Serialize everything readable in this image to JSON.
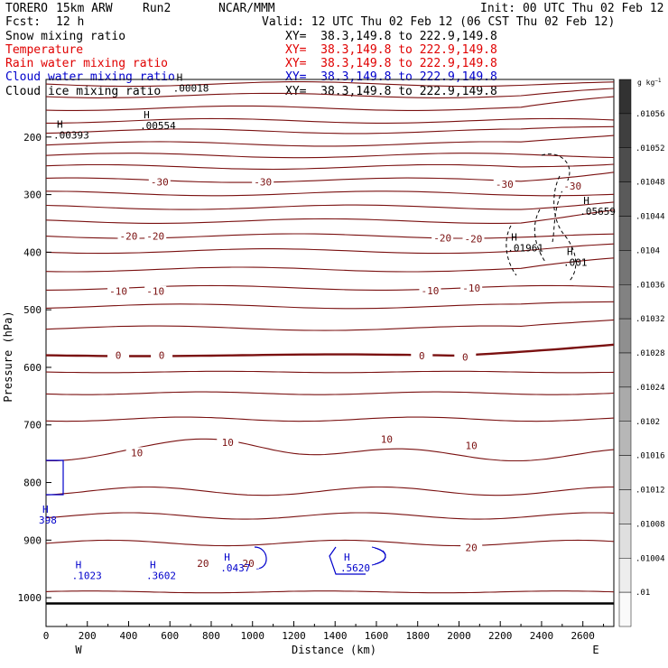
{
  "header": {
    "model": "TORERO",
    "resolution": "15km ARW",
    "run": "Run2",
    "org": "NCAR/MMM",
    "init": "Init: 00 UTC Thu 02 Feb 12",
    "fcst_label": "Fcst:",
    "fcst_value": "12 h",
    "valid": "Valid: 12 UTC Thu 02 Feb 12 (06 CST Thu 02 Feb 12)"
  },
  "fields": [
    {
      "name": "Snow mixing ratio",
      "xy": "",
      "color": "#000000"
    },
    {
      "name": "Temperature",
      "xy": "XY=  38.3,149.8 to 222.9,149.8",
      "color": "#e00000"
    },
    {
      "name": "Rain water mixing ratio",
      "xy": "XY=  38.3,149.8 to 222.9,149.8",
      "color": "#e00000"
    },
    {
      "name": "Cloud water mixing ratio",
      "xy": "XY=  38.3,149.8 to 222.9,149.8",
      "color": "#0000cc"
    },
    {
      "name": "Cloud ice mixing ratio",
      "xy": "XY=  38.3,149.8 to 222.9,149.8",
      "color": "#000000"
    }
  ],
  "snow_xy": "XY=  38.3,149.8 to 222.9,149.8",
  "chart_data": {
    "type": "contour",
    "xlabel": "Distance (km)",
    "ylabel": "Pressure (hPa)",
    "xlim": [
      0,
      2750
    ],
    "ylim": [
      1050,
      100
    ],
    "x_ticks": [
      0,
      200,
      400,
      600,
      800,
      1000,
      1200,
      1400,
      1600,
      1800,
      2000,
      2200,
      2400,
      2600
    ],
    "y_ticks": [
      200,
      300,
      400,
      500,
      600,
      700,
      800,
      900,
      1000
    ],
    "x_end_labels": {
      "left": "W",
      "right": "E"
    },
    "colorbar": {
      "unit": "g kg",
      "ticks": [
        ".01056",
        ".01052",
        ".01048",
        ".01044",
        ".0104",
        ".01036",
        ".01032",
        ".01028",
        ".01024",
        ".0102",
        ".01016",
        ".01012",
        ".01008",
        ".01004",
        ".01"
      ]
    },
    "temperature_labels": [
      {
        "x": 1050,
        "p": 278,
        "text": "-30"
      },
      {
        "x": 550,
        "p": 278,
        "text": "-30"
      },
      {
        "x": 2220,
        "p": 282,
        "text": "-30"
      },
      {
        "x": 2550,
        "p": 285,
        "text": "-30"
      },
      {
        "x": 400,
        "p": 372,
        "text": "-20"
      },
      {
        "x": 530,
        "p": 372,
        "text": "-20"
      },
      {
        "x": 1920,
        "p": 375,
        "text": "-20"
      },
      {
        "x": 2070,
        "p": 377,
        "text": "-20"
      },
      {
        "x": 350,
        "p": 468,
        "text": "-10"
      },
      {
        "x": 530,
        "p": 468,
        "text": "-10"
      },
      {
        "x": 1860,
        "p": 467,
        "text": "-10"
      },
      {
        "x": 2060,
        "p": 462,
        "text": "-10"
      },
      {
        "x": 350,
        "p": 579,
        "text": "0"
      },
      {
        "x": 560,
        "p": 579,
        "text": "0"
      },
      {
        "x": 1820,
        "p": 580,
        "text": "0"
      },
      {
        "x": 2030,
        "p": 582,
        "text": "0"
      },
      {
        "x": 440,
        "p": 748,
        "text": "10"
      },
      {
        "x": 880,
        "p": 730,
        "text": "10"
      },
      {
        "x": 1650,
        "p": 725,
        "text": "10"
      },
      {
        "x": 2060,
        "p": 736,
        "text": "10"
      },
      {
        "x": 760,
        "p": 940,
        "text": "20"
      },
      {
        "x": 980,
        "p": 940,
        "text": "20"
      },
      {
        "x": 2060,
        "p": 913,
        "text": "20"
      }
    ],
    "maxima": [
      {
        "x": 70,
        "p": 193,
        "value": ".00393",
        "color": "#000000"
      },
      {
        "x": 490,
        "p": 177,
        "value": ".00554",
        "color": "#000000"
      },
      {
        "x": 650,
        "p": 112,
        "value": ".00018",
        "color": "#000000"
      },
      {
        "x": 2270,
        "p": 389,
        "value": ".01961",
        "color": "#000000"
      },
      {
        "x": 2540,
        "p": 414,
        "value": ".001",
        "color": "#000000"
      },
      {
        "x": 2620,
        "p": 326,
        "value": ".05659",
        "color": "#000000"
      },
      {
        "x": 0,
        "p": 862,
        "value": "398",
        "color": "#0000cc"
      },
      {
        "x": 160,
        "p": 958,
        "value": ".1023",
        "color": "#0000cc"
      },
      {
        "x": 520,
        "p": 958,
        "value": ".3602",
        "color": "#0000cc"
      },
      {
        "x": 880,
        "p": 945,
        "value": ".0437",
        "color": "#0000cc"
      },
      {
        "x": 1460,
        "p": 945,
        "value": ".5620",
        "color": "#0000cc"
      }
    ]
  }
}
